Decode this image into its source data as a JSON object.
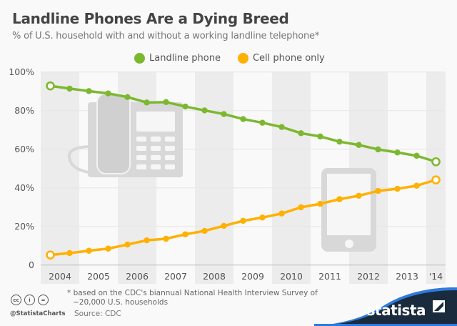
{
  "title": "Landline Phones Are a Dying Breed",
  "subtitle": "% of U.S. household with and without a working landline telephone*",
  "footnote_line1": "* based on the CDC's biannual National Health Interview Survey of",
  "footnote_line2": "~20,000 U.S. households",
  "source": "Source: CDC",
  "handle": "@StatistaCharts",
  "brand": "statista",
  "license_icons": [
    "cc-icon",
    "by-icon",
    "nd-icon"
  ],
  "chart_data": {
    "type": "line",
    "title": "Landline Phones Are a Dying Breed",
    "subtitle": "% of U.S. household with and without a working landline telephone*",
    "x_tick_labels": [
      "2004",
      "2005",
      "2006",
      "2007",
      "2008",
      "2009",
      "2010",
      "2011",
      "2012",
      "2013",
      "'14"
    ],
    "x": [
      "2004 H1",
      "2004 H2",
      "2005 H1",
      "2005 H2",
      "2006 H1",
      "2006 H2",
      "2007 H1",
      "2007 H2",
      "2008 H1",
      "2008 H2",
      "2009 H1",
      "2009 H2",
      "2010 H1",
      "2010 H2",
      "2011 H1",
      "2011 H2",
      "2012 H1",
      "2012 H2",
      "2013 H1",
      "2013 H2",
      "2014 H1"
    ],
    "y_ticks": [
      "0",
      "20%",
      "40%",
      "60%",
      "80%",
      "100%"
    ],
    "ylim": [
      0,
      100
    ],
    "grid": true,
    "legend": "top-center",
    "series": [
      {
        "name": "Landline phone",
        "color": "#7cb82f",
        "values": [
          92.8,
          91.4,
          90.1,
          88.9,
          87.0,
          84.2,
          84.4,
          82.1,
          80.1,
          78.2,
          75.6,
          73.7,
          71.5,
          68.3,
          66.6,
          63.9,
          62.2,
          59.9,
          58.3,
          56.6,
          53.5
        ]
      },
      {
        "name": "Cell phone only",
        "color": "#ffb000",
        "values": [
          5.2,
          6.2,
          7.4,
          8.5,
          10.6,
          12.8,
          13.6,
          15.9,
          17.7,
          20.3,
          22.9,
          24.6,
          26.7,
          29.9,
          31.7,
          34.1,
          35.9,
          38.4,
          39.5,
          41.1,
          44.1
        ]
      }
    ]
  }
}
